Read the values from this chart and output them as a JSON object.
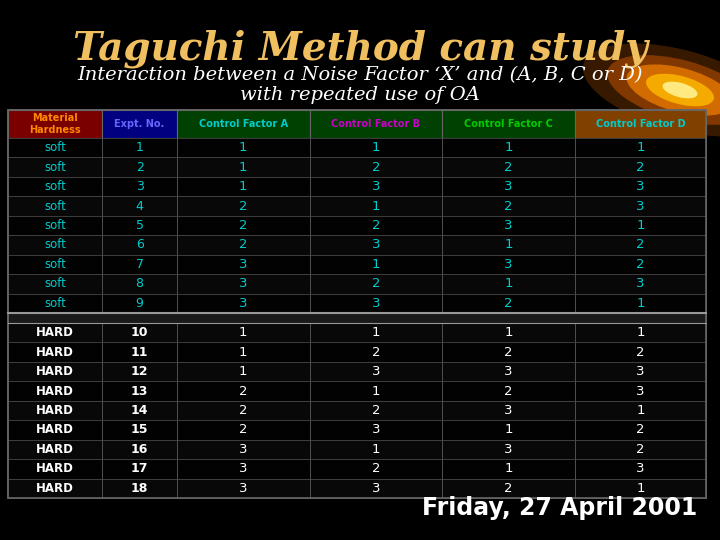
{
  "title": "Taguchi Method can study",
  "subtitle1": "Interaction between a Noise Factor ‘X’ and (A, B, C or D)",
  "subtitle2": "with repeated use of OA",
  "footer": "Friday, 27 April 2001",
  "bg_color": "#000000",
  "title_color": "#f0c060",
  "subtitle_color": "#ffffff",
  "footer_color": "#ffffff",
  "col_headers": [
    "Material\nHardness",
    "Expt. No.",
    "Control Factor A",
    "Control Factor B",
    "Control Factor C",
    "Control Factor D"
  ],
  "header_bg_colors": [
    "#7a0000",
    "#000080",
    "#004000",
    "#004000",
    "#004000",
    "#804000"
  ],
  "header_text_colors": [
    "#ff8800",
    "#6666ff",
    "#00cccc",
    "#cc00cc",
    "#00cc00",
    "#00cccc"
  ],
  "soft_rows": [
    [
      "soft",
      1,
      1,
      1,
      1,
      1
    ],
    [
      "soft",
      2,
      1,
      2,
      2,
      2
    ],
    [
      "soft",
      3,
      1,
      3,
      3,
      3
    ],
    [
      "soft",
      4,
      2,
      1,
      2,
      3
    ],
    [
      "soft",
      5,
      2,
      2,
      3,
      1
    ],
    [
      "soft",
      6,
      2,
      3,
      1,
      2
    ],
    [
      "soft",
      7,
      3,
      1,
      3,
      2
    ],
    [
      "soft",
      8,
      3,
      2,
      1,
      3
    ],
    [
      "soft",
      9,
      3,
      3,
      2,
      1
    ]
  ],
  "hard_rows": [
    [
      "HARD",
      10,
      1,
      1,
      1,
      1
    ],
    [
      "HARD",
      11,
      1,
      2,
      2,
      2
    ],
    [
      "HARD",
      12,
      1,
      3,
      3,
      3
    ],
    [
      "HARD",
      13,
      2,
      1,
      2,
      3
    ],
    [
      "HARD",
      14,
      2,
      2,
      3,
      1
    ],
    [
      "HARD",
      15,
      2,
      3,
      1,
      2
    ],
    [
      "HARD",
      16,
      3,
      1,
      3,
      2
    ],
    [
      "HARD",
      17,
      3,
      2,
      1,
      3
    ],
    [
      "HARD",
      18,
      3,
      3,
      2,
      1
    ]
  ],
  "soft_label_color": "#00cccc",
  "hard_label_color": "#ffffff",
  "soft_num_color": "#00cccc",
  "hard_num_color": "#ffffff",
  "table_border_color": "#666666",
  "row_sep_color": "#555555",
  "gap_row_color": "#333333"
}
